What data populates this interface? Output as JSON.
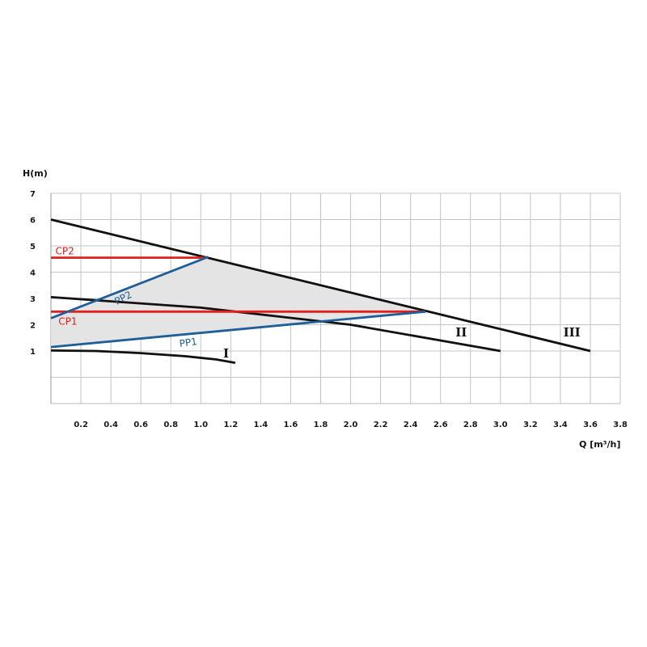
{
  "chart_data": {
    "type": "line",
    "xlabel": "Q [m³/h]",
    "ylabel": "H(m)",
    "xlim": [
      0,
      3.8
    ],
    "ylim": [
      -1,
      7
    ],
    "x_ticks": [
      "0.2",
      "0.4",
      "0.6",
      "0.8",
      "1.0",
      "1.2",
      "1.4",
      "1.6",
      "1.8",
      "2.0",
      "2.2",
      "2.4",
      "2.6",
      "2.8",
      "3.0",
      "3.2",
      "3.4",
      "3.6",
      "3.8"
    ],
    "y_ticks": [
      "1",
      "2",
      "3",
      "4",
      "5",
      "6",
      "7"
    ],
    "grid": true,
    "series": [
      {
        "name": "I",
        "color": "#111111",
        "x": [
          0,
          0.3,
          0.6,
          0.9,
          1.1,
          1.23
        ],
        "y": [
          1.02,
          1.0,
          0.92,
          0.8,
          0.68,
          0.55
        ]
      },
      {
        "name": "II",
        "color": "#111111",
        "x": [
          0,
          1.0,
          2.0,
          2.6,
          3.0
        ],
        "y": [
          3.05,
          2.65,
          2.0,
          1.4,
          1.0
        ]
      },
      {
        "name": "III",
        "color": "#111111",
        "x": [
          0,
          3.6
        ],
        "y": [
          6.0,
          1.0
        ]
      },
      {
        "name": "CP2",
        "color": "#e0201c",
        "x": [
          0,
          1.05
        ],
        "y": [
          4.55,
          4.55
        ]
      },
      {
        "name": "CP1",
        "color": "#e0201c",
        "x": [
          0,
          2.5
        ],
        "y": [
          2.5,
          2.5
        ]
      },
      {
        "name": "PP2",
        "color": "#1f5f99",
        "x": [
          0,
          1.05
        ],
        "y": [
          2.25,
          4.58
        ]
      },
      {
        "name": "PP1",
        "color": "#1f5f99",
        "x": [
          0,
          2.5
        ],
        "y": [
          1.15,
          2.5
        ]
      }
    ],
    "shaded_region": {
      "color": "#e4e4e4",
      "x": [
        0,
        1.05,
        2.5,
        0
      ],
      "y": [
        2.25,
        4.55,
        2.5,
        1.15
      ]
    }
  }
}
